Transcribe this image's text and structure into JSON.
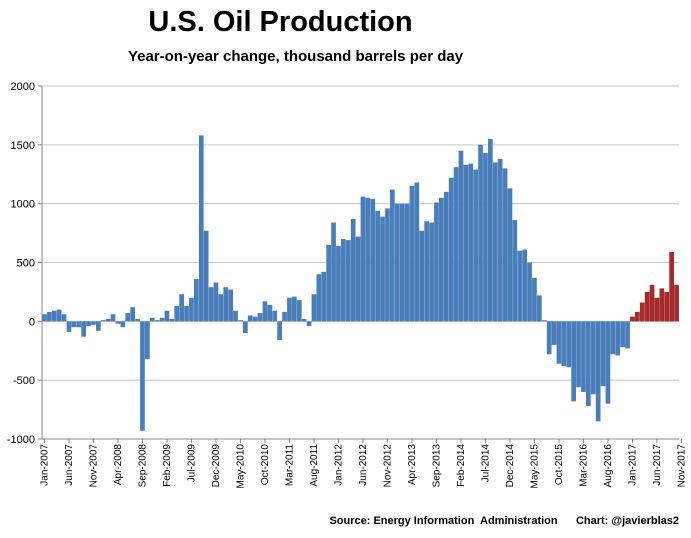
{
  "chart_data": {
    "type": "bar",
    "title": "U.S. Oil Production",
    "subtitle": "Year-on-year change, thousand barrels per day",
    "xlabel": "",
    "ylabel": "",
    "ylim": [
      -1000,
      2000
    ],
    "yticks": [
      2000,
      1500,
      1000,
      500,
      0,
      -500,
      -1000
    ],
    "start": "Jan-2007",
    "end": "Nov-2017",
    "xtick_labels": [
      "Jan-2007",
      "Jun-2007",
      "Nov-2007",
      "Apr-2008",
      "Sep-2008",
      "Feb-2009",
      "Jul-2009",
      "Dec-2009",
      "May-2010",
      "Oct-2010",
      "Mar-2011",
      "Aug-2011",
      "Jan-2012",
      "Jun-2012",
      "Nov-2012",
      "Apr-2013",
      "Sep-2013",
      "Feb-2014",
      "Jul-2014",
      "Dec-2014",
      "May-2015",
      "Oct-2015",
      "Mar-2016",
      "Aug-2016",
      "Jan-2017",
      "Jun-2017",
      "Nov-2017"
    ],
    "series": [
      {
        "name": "Year-on-year change",
        "color": "#4a7ebb",
        "highlight_color": "#a52a2a",
        "highlight_from_index": 120,
        "values": [
          60,
          80,
          90,
          100,
          60,
          -90,
          -50,
          -50,
          -130,
          -40,
          -30,
          -80,
          10,
          20,
          60,
          -20,
          -50,
          70,
          120,
          20,
          -930,
          -320,
          30,
          10,
          30,
          90,
          20,
          130,
          230,
          130,
          200,
          360,
          1580,
          770,
          290,
          330,
          230,
          290,
          270,
          90,
          10,
          -100,
          50,
          40,
          70,
          170,
          140,
          90,
          -160,
          80,
          200,
          210,
          180,
          20,
          -40,
          230,
          400,
          420,
          650,
          840,
          640,
          700,
          690,
          870,
          720,
          1060,
          1050,
          1040,
          940,
          890,
          960,
          1120,
          1000,
          1000,
          1000,
          1150,
          1180,
          770,
          850,
          840,
          1010,
          1050,
          1100,
          1220,
          1310,
          1450,
          1330,
          1340,
          1290,
          1500,
          1430,
          1550,
          1350,
          1380,
          1300,
          1130,
          860,
          600,
          610,
          500,
          370,
          220,
          10,
          -280,
          -200,
          -360,
          -380,
          -390,
          -680,
          -560,
          -600,
          -720,
          -620,
          -850,
          -550,
          -700,
          -280,
          -290,
          -220,
          -230,
          40,
          80,
          160,
          250,
          310,
          200,
          280,
          250,
          590,
          310
        ]
      }
    ],
    "annotations": {
      "source": "Source: Energy Information  Administration",
      "credit": "Chart: @javierblas2"
    }
  }
}
